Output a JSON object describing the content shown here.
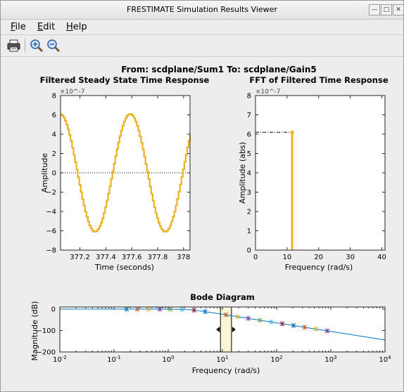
{
  "window": {
    "title": "FRESTIMATE Simulation Results Viewer"
  },
  "menu": [
    {
      "label": "File",
      "ul": "F",
      "rest": "ile"
    },
    {
      "label": "Edit",
      "ul": "E",
      "rest": "dit"
    },
    {
      "label": "Help",
      "ul": "H",
      "rest": "elp"
    }
  ],
  "toolbar": {
    "items": [
      "print-icon",
      "zoom-in-icon",
      "zoom-out-icon"
    ]
  },
  "figure": {
    "heading": "From: scdplane/Sum1  To: scdplane/Gain5"
  },
  "colors": {
    "signal": "#EDB120",
    "axes": "#262626",
    "bode_line": "#0072BD"
  },
  "chart_data": [
    {
      "type": "line",
      "title": "Filtered Steady State Time Response",
      "xlabel": "Time (seconds)",
      "ylabel": "Amplitude",
      "y_exponent": "×10^-7",
      "xlim": [
        377.05,
        378.05
      ],
      "ylim": [
        -8,
        8
      ],
      "xticks": [
        377.2,
        377.4,
        377.6,
        377.8,
        378
      ],
      "xtick_labels": [
        "377.2",
        "377.4",
        "377.6",
        "377.8",
        "378"
      ],
      "yticks": [
        -8,
        -6,
        -4,
        -2,
        0,
        2,
        4,
        6,
        8
      ],
      "zero_line": "dotted",
      "series": [
        {
          "amplitude": 6.1,
          "frequency_rad_s": 11.6,
          "phase_rad": 1.67,
          "style": "stairs"
        }
      ]
    },
    {
      "type": "stem",
      "title": "FFT of Filtered Time Response",
      "xlabel": "Frequency (rad/s)",
      "ylabel": "Amplitude (abs)",
      "y_exponent": "×10^-7",
      "xlim": [
        0,
        41
      ],
      "ylim": [
        0,
        8
      ],
      "xticks": [
        0,
        10,
        20,
        30,
        40
      ],
      "yticks": [
        0,
        1,
        2,
        3,
        4,
        5,
        6,
        7,
        8
      ],
      "points": [
        {
          "x": 11.6,
          "y": 6.1
        }
      ],
      "reference_line": "dash-dot"
    },
    {
      "type": "line",
      "title": "Bode Diagram",
      "xlabel": "Frequency  (rad/s)",
      "ylabel": "Magnitude (dB)",
      "xscale": "log",
      "xlim": [
        0.01,
        10000
      ],
      "ylim": [
        -200,
        10
      ],
      "xticks": [
        0.01,
        0.1,
        1,
        10,
        100,
        1000,
        10000
      ],
      "yticks": [
        0,
        -100,
        -200
      ],
      "markers": [
        0.17,
        0.27,
        0.43,
        0.7,
        1.1,
        1.8,
        3.0,
        4.8,
        11.6,
        19,
        30,
        49,
        79,
        127,
        205,
        330,
        530,
        860
      ],
      "marker_colors": [
        "#0072BD",
        "#D95319",
        "#EDB120",
        "#7E2F8E",
        "#77AC30",
        "#4DBEEE",
        "#A2142F"
      ],
      "highlight_band": [
        9.2,
        14.7
      ]
    }
  ]
}
